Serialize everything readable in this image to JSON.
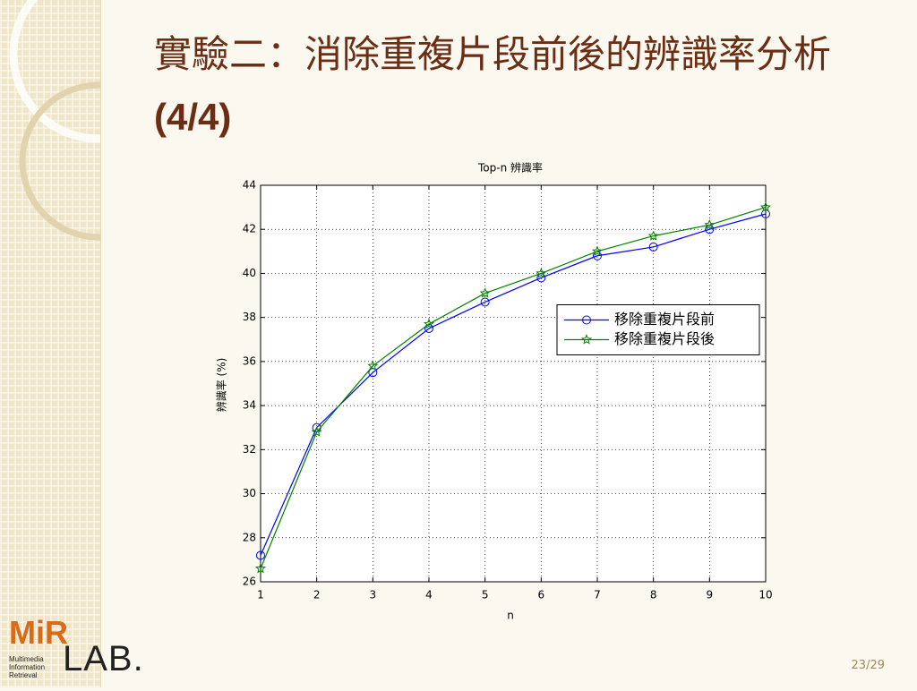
{
  "slide": {
    "title": "實驗二：消除重複片段前後的辨識率分析",
    "title_suffix": "(4/4)",
    "page": "23/29",
    "logo": {
      "mark": "MiR",
      "lab": "LAB.",
      "lines": [
        "Multimedia",
        "Information",
        "Retrieval"
      ]
    }
  },
  "chart_data": {
    "type": "line",
    "title": "Top-n 辨識率",
    "x_label": "n",
    "y_label": "辨識率 (%)",
    "x": [
      1,
      2,
      3,
      4,
      5,
      6,
      7,
      8,
      9,
      10
    ],
    "series": [
      {
        "name": "移除重複片段前",
        "color": "#0000ff",
        "marker": "circle",
        "values": [
          27.2,
          33.0,
          35.5,
          37.5,
          38.7,
          39.8,
          40.8,
          41.2,
          42.0,
          42.7
        ]
      },
      {
        "name": "移除重複片段後",
        "color": "#008000",
        "marker": "star",
        "values": [
          26.6,
          32.8,
          35.8,
          37.7,
          39.1,
          40.0,
          41.0,
          41.7,
          42.2,
          43.0
        ]
      }
    ],
    "xlim": [
      1,
      10
    ],
    "xticks": [
      1,
      2,
      3,
      4,
      5,
      6,
      7,
      8,
      9,
      10
    ],
    "ylim": [
      26,
      44
    ],
    "yticks": [
      26,
      28,
      30,
      32,
      34,
      36,
      38,
      40,
      42,
      44
    ],
    "grid": true,
    "legend": "center right"
  }
}
